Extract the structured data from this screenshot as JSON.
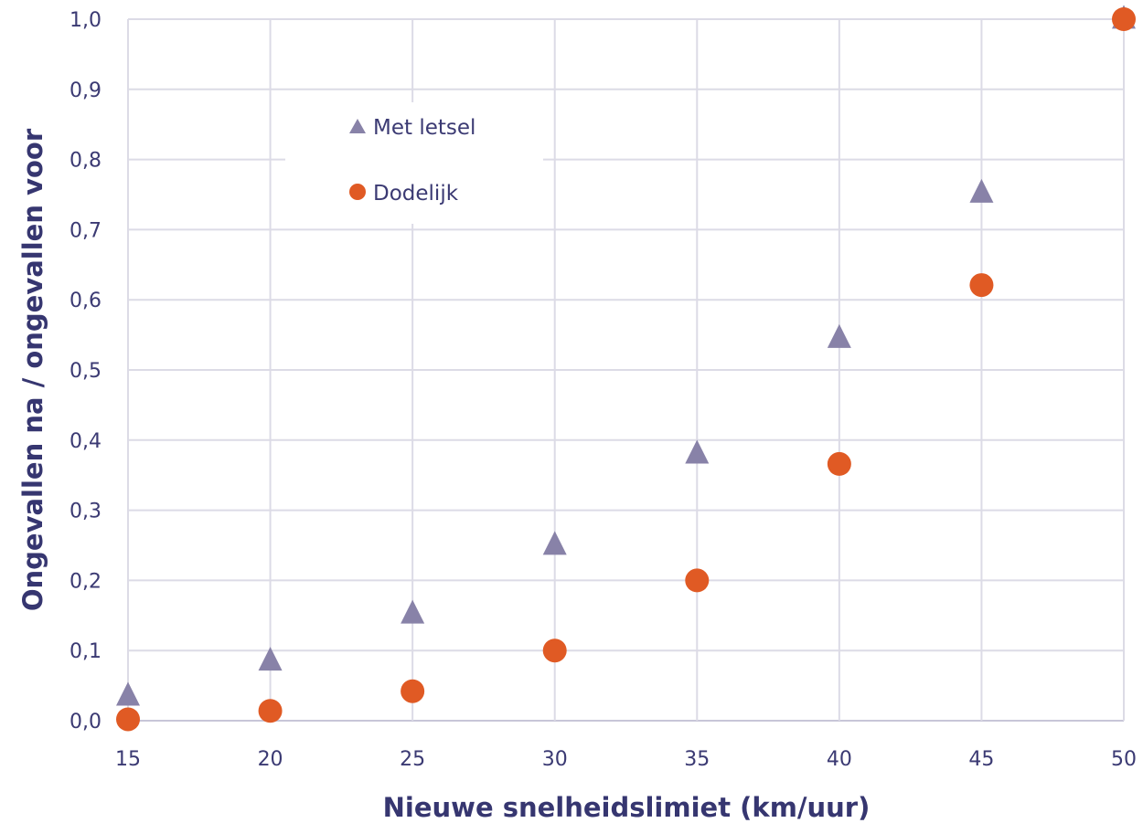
{
  "chart_data": {
    "type": "scatter",
    "title": "",
    "xlabel": "Nieuwe snelheidslimiet (km/uur)",
    "ylabel": "Ongevallen na / ongevallen voor",
    "xlim": [
      15,
      50
    ],
    "ylim": [
      0,
      1
    ],
    "x_ticks": [
      "15",
      "20",
      "25",
      "30",
      "35",
      "40",
      "45",
      "50"
    ],
    "y_ticks": [
      "0,0",
      "0,1",
      "0,2",
      "0,3",
      "0,4",
      "0,5",
      "0,6",
      "0,7",
      "0,8",
      "0,9",
      "1,0"
    ],
    "grid": true,
    "legend_position": "top-left",
    "series": [
      {
        "name": "Met letsel",
        "marker": "triangle",
        "color": "#8882a8",
        "points": [
          {
            "x": 15,
            "y": 0.035
          },
          {
            "x": 20,
            "y": 0.085
          },
          {
            "x": 25,
            "y": 0.152
          },
          {
            "x": 30,
            "y": 0.25
          },
          {
            "x": 35,
            "y": 0.38
          },
          {
            "x": 40,
            "y": 0.545
          },
          {
            "x": 45,
            "y": 0.752
          },
          {
            "x": 50,
            "y": 1.0
          }
        ]
      },
      {
        "name": "Dodelijk",
        "marker": "circle",
        "color": "#e05a24",
        "points": [
          {
            "x": 15,
            "y": 0.002
          },
          {
            "x": 20,
            "y": 0.014
          },
          {
            "x": 25,
            "y": 0.042
          },
          {
            "x": 30,
            "y": 0.1
          },
          {
            "x": 35,
            "y": 0.2
          },
          {
            "x": 40,
            "y": 0.366
          },
          {
            "x": 45,
            "y": 0.621
          },
          {
            "x": 50,
            "y": 1.0
          }
        ]
      }
    ]
  }
}
